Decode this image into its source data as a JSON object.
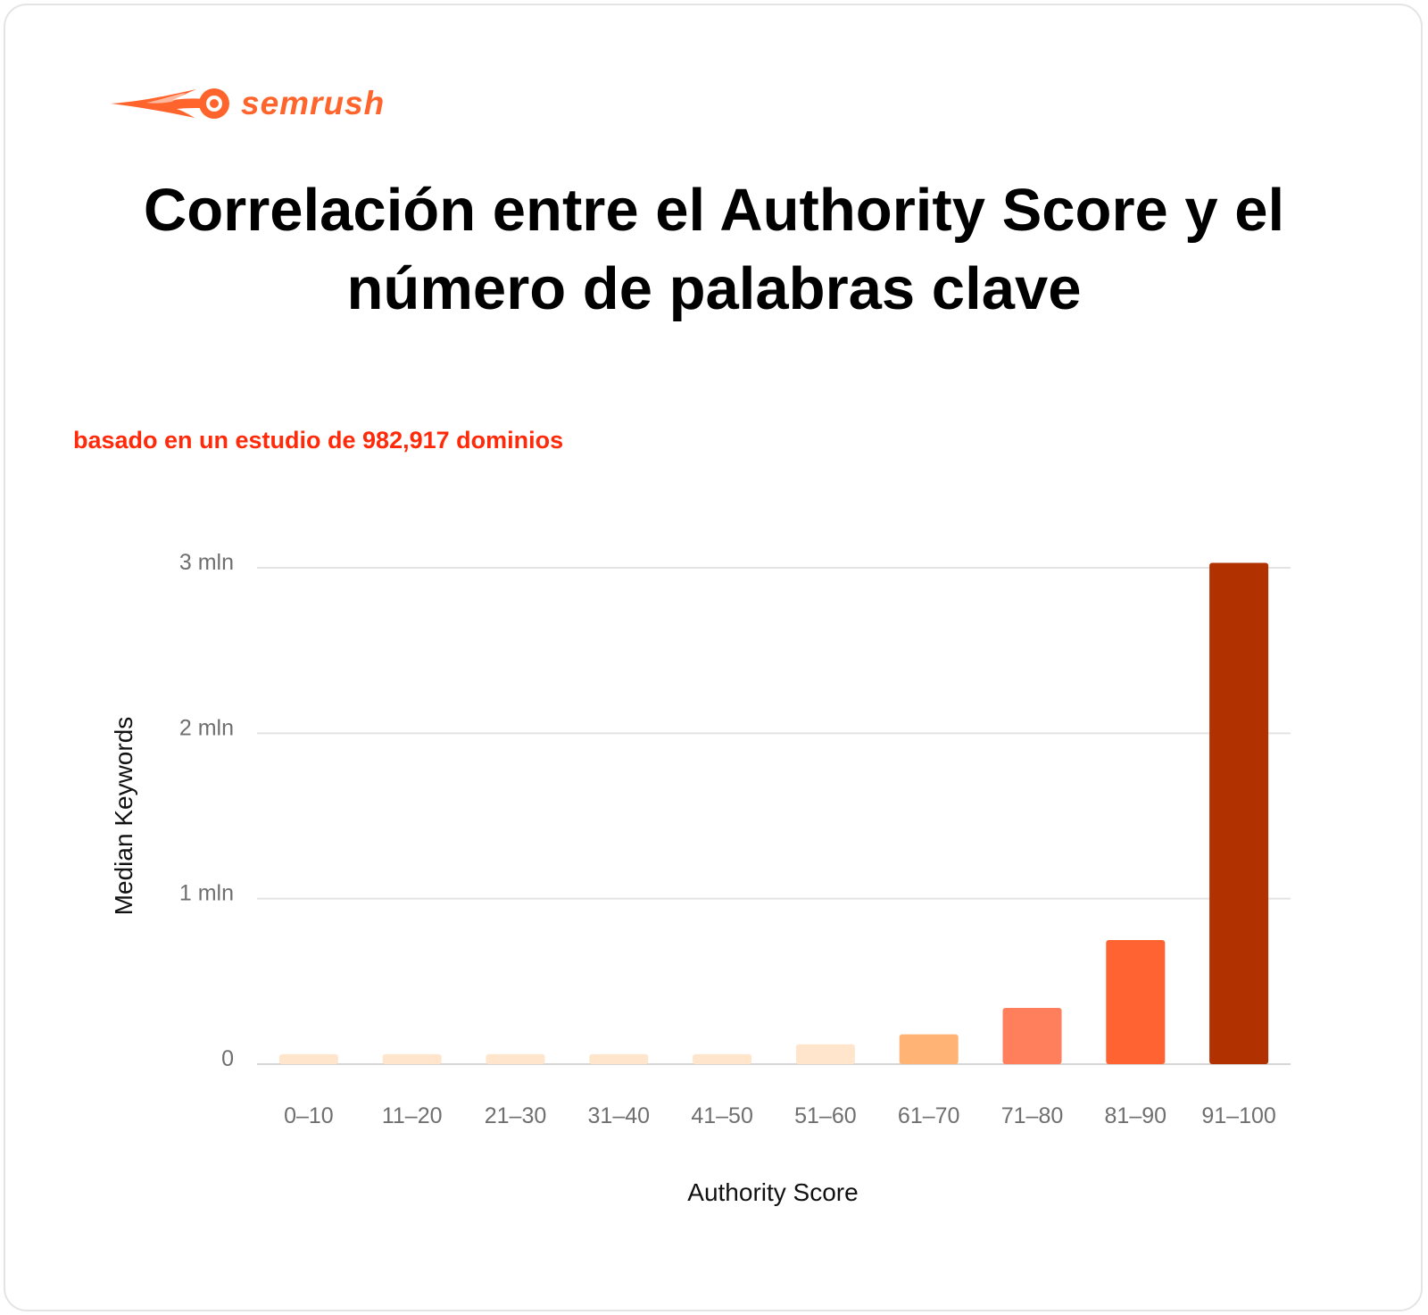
{
  "brand": {
    "name": "semrush",
    "color": "#ff642d"
  },
  "header": {
    "title_line1": "Correlación entre el Authority Score y el",
    "title_line2": "número de palabras clave",
    "subtitle": "basado en un estudio de 982,917 dominios"
  },
  "chart_data": {
    "type": "bar",
    "title": "Correlación entre el Authority Score y el número de palabras clave",
    "subtitle": "basado en un estudio de 982,917 dominios",
    "xlabel": "Authority Score",
    "ylabel": "Median Keywords",
    "categories": [
      "0–10",
      "11–20",
      "21–30",
      "31–40",
      "41–50",
      "51–60",
      "61–70",
      "71–80",
      "81–90",
      "91–100"
    ],
    "values": [
      60000,
      60000,
      60000,
      60000,
      60000,
      120000,
      180000,
      340000,
      750000,
      3030000
    ],
    "colors": [
      "#ffe5cc",
      "#ffe5cc",
      "#ffe5cc",
      "#ffe5cc",
      "#ffe5cc",
      "#ffe5cc",
      "#ffb374",
      "#ff7f5c",
      "#ff6331",
      "#b13100"
    ],
    "ylim": [
      0,
      3000000
    ],
    "yticks": [
      0,
      1000000,
      2000000,
      3000000
    ],
    "ytick_labels": [
      "0",
      "1 mln",
      "2 mln",
      "3 mln"
    ],
    "grid": true,
    "legend": "none"
  }
}
